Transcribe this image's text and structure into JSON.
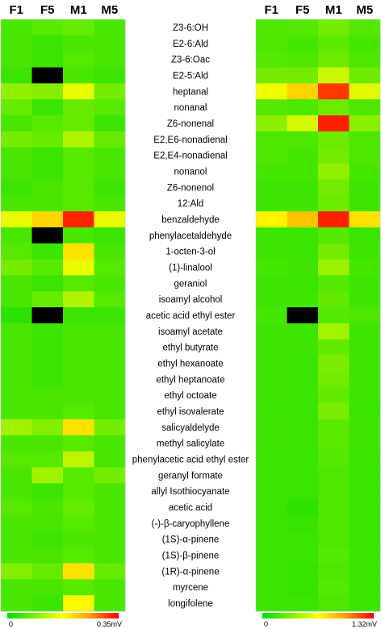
{
  "chart_data": {
    "type": "heatmap",
    "columns": [
      "F1",
      "F5",
      "M1",
      "M5"
    ],
    "rows": [
      "Z3-6:OH",
      "E2-6:Ald",
      "Z3-6:Oac",
      "E2-5:Ald",
      "heptanal",
      "nonanal",
      "Z6-nonenal",
      "E2,E6-nonadienal",
      "E2,E4-nonadienal",
      "nonanol",
      "Z6-nonenol",
      "12:Ald",
      "benzaldehyde",
      "phenylacetaldehyde",
      "1-octen-3-ol",
      "(1)-linalool",
      "geraniol",
      "isoamyl alcohol",
      "acetic acid ethyl ester",
      "isoamyl acetate",
      "ethyl butyrate",
      "ethyl hexanoate",
      "ethyl heptanoate",
      "ethyl octoate",
      "ethyl isovalerate",
      "salicyaldelyde",
      "methyl salicylate",
      "phenylacetic acid ethyl ester",
      "geranyl formate",
      "allyl Isothiocyanate",
      "acetic acid",
      "(-)-β-caryophyllene",
      "(1S)-α-pinene",
      "(1S)-β-pinene",
      "(1R)-α-pinene",
      "myrcene",
      "longifolene"
    ],
    "missing_color": "#000000",
    "colorscale": [
      "#00dd00",
      "#7fee00",
      "#ffff00",
      "#ff9900",
      "#ff0000"
    ],
    "maps": [
      {
        "side": "left",
        "scale_min_label": "0",
        "scale_max_label": "0.35mV",
        "vmax": 0.35,
        "values": [
          [
            0.05,
            0.06,
            0.07,
            0.05
          ],
          [
            0.05,
            0.04,
            0.05,
            0.05
          ],
          [
            0.05,
            0.04,
            0.06,
            0.05
          ],
          [
            0.04,
            null,
            0.05,
            0.04
          ],
          [
            0.1,
            0.09,
            0.16,
            0.08
          ],
          [
            0.07,
            0.04,
            0.07,
            0.06
          ],
          [
            0.05,
            0.06,
            0.07,
            0.04
          ],
          [
            0.08,
            0.07,
            0.12,
            0.07
          ],
          [
            0.05,
            0.04,
            0.06,
            0.05
          ],
          [
            0.05,
            0.04,
            0.06,
            0.05
          ],
          [
            0.04,
            0.05,
            0.06,
            0.04
          ],
          [
            0.05,
            0.05,
            0.06,
            0.05
          ],
          [
            0.16,
            0.21,
            0.33,
            0.16
          ],
          [
            0.05,
            null,
            0.05,
            0.04
          ],
          [
            0.06,
            0.04,
            0.2,
            0.05
          ],
          [
            0.08,
            0.06,
            0.16,
            0.06
          ],
          [
            0.05,
            0.04,
            0.06,
            0.05
          ],
          [
            0.05,
            0.07,
            0.12,
            0.06
          ],
          [
            0.03,
            null,
            0.04,
            0.04
          ],
          [
            0.05,
            0.04,
            0.05,
            0.05
          ],
          [
            0.05,
            0.04,
            0.05,
            0.05
          ],
          [
            0.05,
            0.04,
            0.05,
            0.05
          ],
          [
            0.05,
            0.04,
            0.05,
            0.05
          ],
          [
            0.05,
            0.05,
            0.05,
            0.05
          ],
          [
            0.05,
            0.05,
            0.06,
            0.05
          ],
          [
            0.11,
            0.09,
            0.2,
            0.08
          ],
          [
            0.05,
            0.05,
            0.06,
            0.05
          ],
          [
            0.06,
            0.06,
            0.13,
            0.05
          ],
          [
            0.05,
            0.11,
            0.06,
            0.08
          ],
          [
            0.05,
            0.04,
            0.06,
            0.05
          ],
          [
            0.06,
            0.05,
            0.07,
            0.05
          ],
          [
            0.05,
            0.05,
            0.06,
            0.05
          ],
          [
            0.05,
            0.04,
            0.05,
            0.05
          ],
          [
            0.05,
            0.05,
            0.06,
            0.05
          ],
          [
            0.09,
            0.07,
            0.2,
            0.07
          ],
          [
            0.05,
            0.05,
            0.06,
            0.05
          ],
          [
            0.05,
            0.04,
            0.18,
            0.05
          ]
        ]
      },
      {
        "side": "right",
        "scale_min_label": "0",
        "scale_max_label": "1.32mV",
        "vmax": 1.32,
        "values": [
          [
            0.2,
            0.22,
            0.3,
            0.22
          ],
          [
            0.2,
            0.18,
            0.24,
            0.18
          ],
          [
            0.22,
            0.2,
            0.28,
            0.2
          ],
          [
            0.3,
            0.3,
            0.52,
            0.28
          ],
          [
            0.62,
            0.8,
            1.2,
            0.58
          ],
          [
            0.22,
            0.2,
            0.28,
            0.2
          ],
          [
            0.36,
            0.55,
            1.25,
            0.36
          ],
          [
            0.2,
            0.2,
            0.28,
            0.2
          ],
          [
            0.2,
            0.18,
            0.3,
            0.2
          ],
          [
            0.18,
            0.18,
            0.38,
            0.18
          ],
          [
            0.16,
            0.16,
            0.3,
            0.16
          ],
          [
            0.16,
            0.16,
            0.28,
            0.16
          ],
          [
            0.7,
            0.85,
            1.25,
            0.75
          ],
          [
            0.15,
            0.15,
            0.22,
            0.15
          ],
          [
            0.16,
            0.15,
            0.3,
            0.16
          ],
          [
            0.18,
            0.16,
            0.4,
            0.18
          ],
          [
            0.16,
            0.15,
            0.22,
            0.16
          ],
          [
            0.16,
            0.16,
            0.26,
            0.16
          ],
          [
            0.18,
            null,
            0.22,
            0.2
          ],
          [
            0.16,
            0.15,
            0.42,
            0.16
          ],
          [
            0.16,
            0.16,
            0.26,
            0.16
          ],
          [
            0.16,
            0.15,
            0.32,
            0.16
          ],
          [
            0.16,
            0.15,
            0.3,
            0.16
          ],
          [
            0.16,
            0.15,
            0.26,
            0.16
          ],
          [
            0.15,
            0.15,
            0.32,
            0.15
          ],
          [
            0.16,
            0.15,
            0.24,
            0.16
          ],
          [
            0.16,
            0.15,
            0.24,
            0.16
          ],
          [
            0.15,
            0.15,
            0.22,
            0.15
          ],
          [
            0.15,
            0.15,
            0.2,
            0.15
          ],
          [
            0.15,
            0.15,
            0.2,
            0.15
          ],
          [
            0.15,
            0.12,
            0.2,
            0.15
          ],
          [
            0.15,
            0.14,
            0.2,
            0.15
          ],
          [
            0.15,
            0.15,
            0.2,
            0.15
          ],
          [
            0.15,
            0.15,
            0.22,
            0.15
          ],
          [
            0.15,
            0.14,
            0.2,
            0.15
          ],
          [
            0.15,
            0.14,
            0.22,
            0.15
          ],
          [
            0.15,
            0.15,
            0.2,
            0.15
          ]
        ]
      }
    ]
  }
}
